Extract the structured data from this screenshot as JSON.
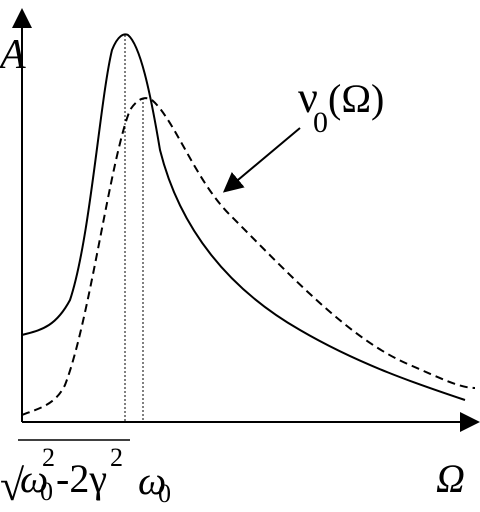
{
  "axes": {
    "y_label": "A",
    "x_label": "Ω"
  },
  "curve_label": {
    "base": "ν",
    "sub": "0",
    "arg": "(Ω)"
  },
  "markers": [
    {
      "sqrt": "√",
      "omega": "ω",
      "omega_sub": "0",
      "omega_sup": "2",
      "minus": "-2γ",
      "gamma_sup": "2"
    },
    {
      "omega": "ω",
      "omega_sub": "0"
    }
  ]
}
